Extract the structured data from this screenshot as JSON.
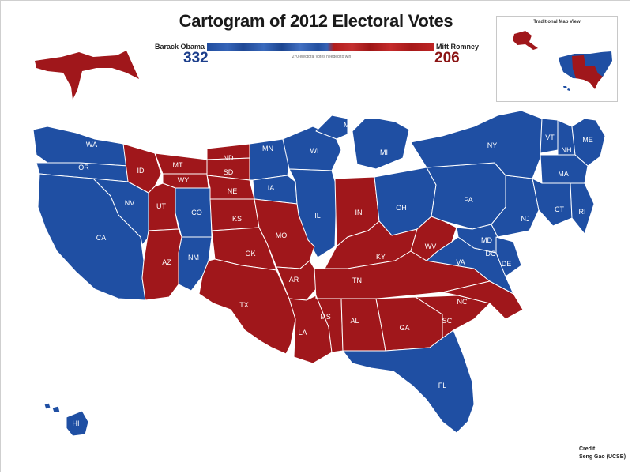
{
  "title": "Cartogram of 2012 Electoral Votes",
  "candidates": {
    "obama": {
      "name": "Barack Obama",
      "votes": "332"
    },
    "romney": {
      "name": "Mitt Romney",
      "votes": "206"
    }
  },
  "bar_note": "270 electoral votes needed to win",
  "inset": {
    "title": "Traditional Map View"
  },
  "credit": {
    "line1": "Credit:",
    "line2": "Seng Gao (UCSB)"
  },
  "colors": {
    "democrat": "#1f4fa3",
    "republican": "#a0171b",
    "boundary": "#ffffff"
  },
  "states": {
    "WA": "WA",
    "OR": "OR",
    "CA": "CA",
    "NV": "NV",
    "ID": "ID",
    "MT": "MT",
    "WY": "WY",
    "UT": "UT",
    "CO": "CO",
    "AZ": "AZ",
    "NM": "NM",
    "ND": "ND",
    "SD": "SD",
    "NE": "NE",
    "KS": "KS",
    "OK": "OK",
    "TX": "TX",
    "MN": "MN",
    "IA": "IA",
    "MO": "MO",
    "AR": "AR",
    "LA": "LA",
    "WI": "WI",
    "IL": "IL",
    "MI": "MI",
    "MI2": "MI",
    "IN": "IN",
    "OH": "OH",
    "KY": "KY",
    "TN": "TN",
    "MS": "MS",
    "AL": "AL",
    "GA": "GA",
    "FL": "FL",
    "SC": "SC",
    "NC": "NC",
    "VA": "VA",
    "WV": "WV",
    "PA": "PA",
    "NY": "NY",
    "VT": "VT",
    "NH": "NH",
    "ME": "ME",
    "MA": "MA",
    "CT": "CT",
    "RI": "RI",
    "NJ": "NJ",
    "MD": "MD",
    "DC": "DC",
    "DE": "DE",
    "HI": "HI"
  }
}
